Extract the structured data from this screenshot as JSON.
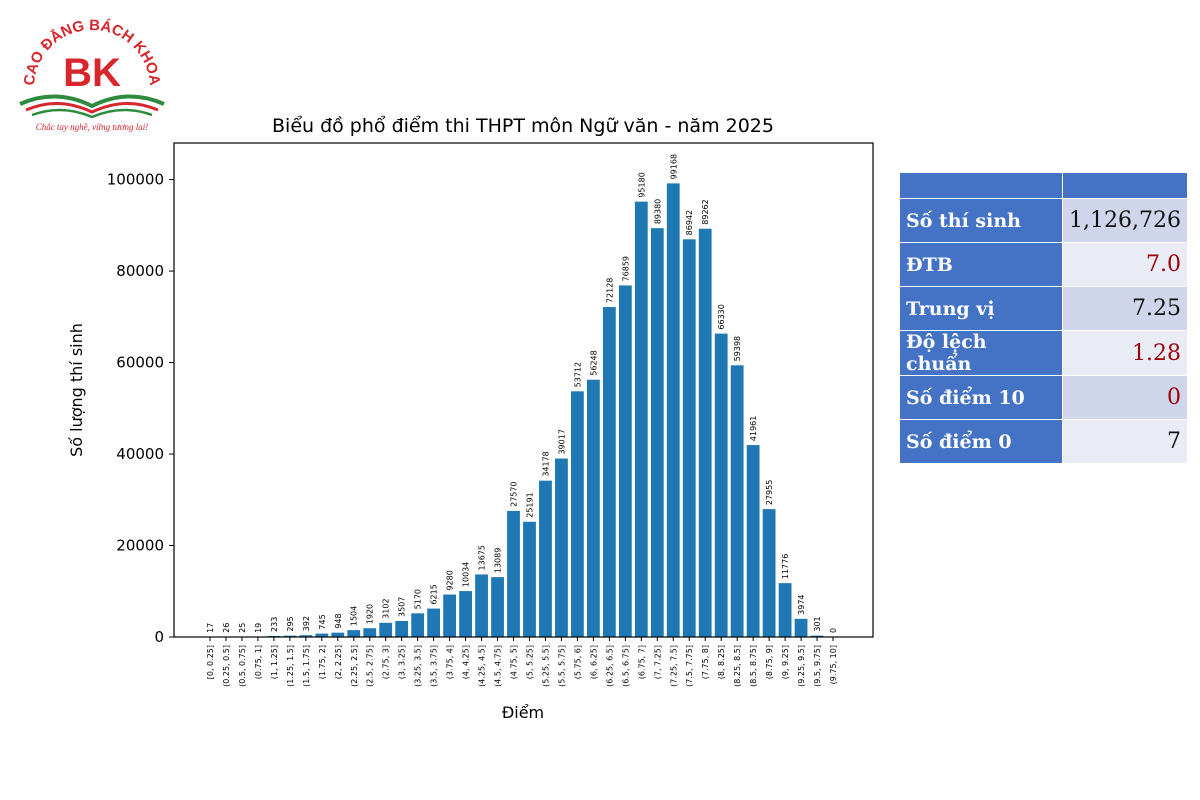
{
  "logo": {
    "arc_text": "CAO ĐẲNG BÁCH KHOA",
    "mark": "BK",
    "slogan": "Chắc tay nghề, vững tương lai!",
    "colors": {
      "red": "#d7262c",
      "green": "#2e8b3d"
    }
  },
  "chart_data": {
    "type": "bar",
    "title": "Biểu đồ phổ điểm thi THPT môn Ngữ văn - năm 2025",
    "xlabel": "Điểm",
    "ylabel": "Số lượng thí sinh",
    "ylim": [
      0,
      108000
    ],
    "yticks": [
      0,
      20000,
      40000,
      60000,
      80000,
      100000
    ],
    "grid": false,
    "bar_color": "#1f77b4",
    "categories": [
      "[0, 0.25]",
      "(0.25, 0.5]",
      "(0.5, 0.75]",
      "(0.75, 1]",
      "(1, 1.25]",
      "(1.25, 1.5]",
      "(1.5, 1.75]",
      "(1.75, 2]",
      "(2, 2.25]",
      "(2.25, 2.5]",
      "(2.5, 2.75]",
      "(2.75, 3]",
      "(3, 3.25]",
      "(3.25, 3.5]",
      "(3.5, 3.75]",
      "(3.75, 4]",
      "(4, 4.25]",
      "(4.25, 4.5]",
      "(4.5, 4.75]",
      "(4.75, 5]",
      "(5, 5.25]",
      "(5.25, 5.5]",
      "(5.5, 5.75]",
      "(5.75, 6]",
      "(6, 6.25]",
      "(6.25, 6.5]",
      "(6.5, 6.75]",
      "(6.75, 7]",
      "(7, 7.25]",
      "(7.25, 7.5]",
      "(7.5, 7.75]",
      "(7.75, 8]",
      "(8, 8.25]",
      "(8.25, 8.5]",
      "(8.5, 8.75]",
      "(8.75, 9]",
      "(9, 9.25]",
      "(9.25, 9.5]",
      "(9.5, 9.75]",
      "(9.75, 10]"
    ],
    "values": [
      17,
      26,
      25,
      19,
      233,
      295,
      392,
      745,
      948,
      1504,
      1920,
      3102,
      3507,
      5170,
      6215,
      9280,
      10034,
      13675,
      13089,
      27570,
      25191,
      34178,
      39017,
      53712,
      56248,
      72128,
      76859,
      95180,
      89380,
      99168,
      86942,
      89262,
      66330,
      59398,
      41961,
      27955,
      11776,
      3974,
      301,
      0
    ]
  },
  "stats_table": {
    "colors": {
      "header": "#4472c4",
      "row_light": "#e9ebf5",
      "row_dark": "#cfd5ea",
      "accent_red": "#9c0006"
    },
    "rows": [
      {
        "label": "Số thí sinh",
        "value": "1,126,726"
      },
      {
        "label": "ĐTB",
        "value": "7.0"
      },
      {
        "label": "Trung vị",
        "value": "7.25"
      },
      {
        "label": "Độ lệch chuẩn",
        "value": "1.28"
      },
      {
        "label": "Số điểm 10",
        "value": "0"
      },
      {
        "label": "Số điểm 0",
        "value": "7"
      }
    ]
  }
}
